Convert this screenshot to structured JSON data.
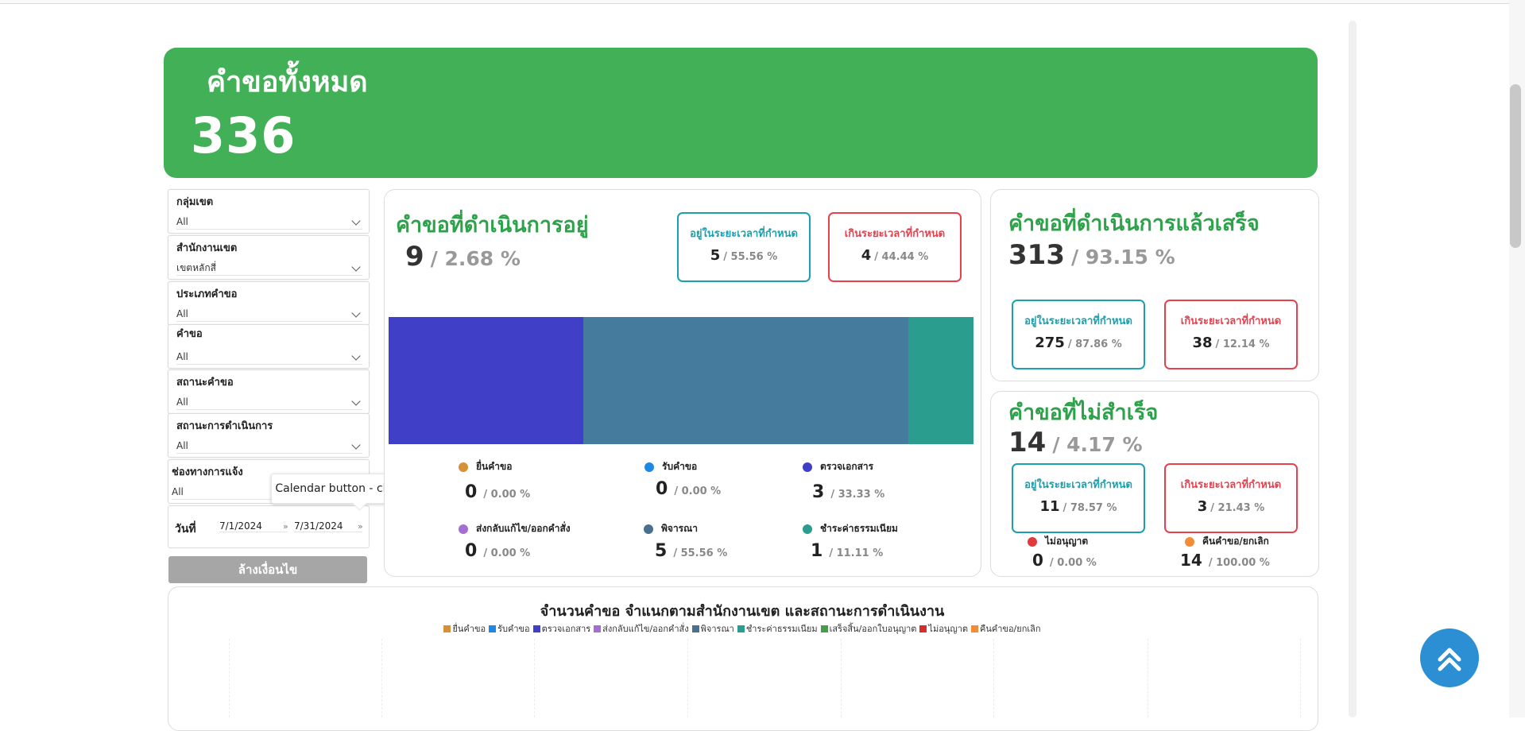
{
  "header": {
    "title": "คำขอทั้งหมด",
    "total": "336",
    "color": "#42b057"
  },
  "filters": [
    {
      "label": "กลุ่มเขต",
      "value": "All"
    },
    {
      "label": "สำนักงานเขต",
      "value": "เขตหลักสี่"
    },
    {
      "label": "ประเภทคำขอ",
      "value": "All"
    },
    {
      "label": "คำขอ",
      "value": "All"
    },
    {
      "label": "สถานะคำขอ",
      "value": "All"
    },
    {
      "label": "สถานะการดำเนินการ",
      "value": "All"
    },
    {
      "label": "ช่องทางการแจ้ง",
      "value": "All"
    }
  ],
  "date_filter": {
    "label": "วันที่",
    "start": "7/1/2024",
    "end": "7/31/2024"
  },
  "tooltip": "Calendar button - choose date",
  "clear_button": "ล้างเงื่อนไข",
  "in_progress": {
    "title": "คำขอที่ดำเนินการอยู่",
    "count": "9",
    "percent": "/ 2.68 %",
    "within": {
      "label": "อยู่ในระยะเวลาที่กำหนด",
      "count": "5",
      "percent": "/ 55.56 %"
    },
    "over": {
      "label": "เกินระยะเวลาที่กำหนด",
      "count": "4",
      "percent": "/ 44.44 %"
    },
    "bar_segments": [
      {
        "name": "ตรวจเอกสาร",
        "value": 3,
        "color": "#3f3fc8"
      },
      {
        "name": "พิจารณา",
        "value": 5,
        "color": "#457b9d"
      },
      {
        "name": "ชำระค่าธรรมเนียม",
        "value": 1,
        "color": "#2a9d8f"
      }
    ],
    "stats": [
      {
        "name": "ยื่นคำขอ",
        "count": "0",
        "percent": "/ 0.00 %",
        "color": "#d4913a"
      },
      {
        "name": "รับคำขอ",
        "count": "0",
        "percent": "/ 0.00 %",
        "color": "#1e88e5"
      },
      {
        "name": "ตรวจเอกสาร",
        "count": "3",
        "percent": "/ 33.33 %",
        "color": "#3f3fc8"
      },
      {
        "name": "ส่งกลับแก้ไข/ออกคำสั่ง",
        "count": "0",
        "percent": "/ 0.00 %",
        "color": "#a46fd0"
      },
      {
        "name": "พิจารณา",
        "count": "5",
        "percent": "/ 55.56 %",
        "color": "#4a6f8f"
      },
      {
        "name": "ชำระค่าธรรมเนียม",
        "count": "1",
        "percent": "/ 11.11 %",
        "color": "#2a9d8f"
      }
    ]
  },
  "completed": {
    "title": "คำขอที่ดำเนินการแล้วเสร็จ",
    "count": "313",
    "percent": "/ 93.15 %",
    "within": {
      "label": "อยู่ในระยะเวลาที่กำหนด",
      "count": "275",
      "percent": "/ 87.86 %"
    },
    "over": {
      "label": "เกินระยะเวลาที่กำหนด",
      "count": "38",
      "percent": "/ 12.14 %"
    }
  },
  "failed": {
    "title": "คำขอที่ไม่สำเร็จ",
    "count": "14",
    "percent": "/ 4.17 %",
    "within": {
      "label": "อยู่ในระยะเวลาที่กำหนด",
      "count": "11",
      "percent": "/ 78.57 %"
    },
    "over": {
      "label": "เกินระยะเวลาที่กำหนด",
      "count": "3",
      "percent": "/ 21.43 %"
    },
    "stats": [
      {
        "name": "ไม่อนุญาต",
        "count": "0",
        "percent": "/ 0.00 %",
        "color": "#e03a3a"
      },
      {
        "name": "คืนคำขอ/ยกเลิก",
        "count": "14",
        "percent": "/ 100.00 %",
        "color": "#f28c38"
      }
    ]
  },
  "chart": {
    "title": "จำนวนคำขอ  จำแนกตามสำนักงานเขต และสถานะการดำเนินงาน",
    "legend": [
      {
        "name": "ยื่นคำขอ",
        "color": "#d4913a"
      },
      {
        "name": "รับคำขอ",
        "color": "#1e88e5"
      },
      {
        "name": "ตรวจเอกสาร",
        "color": "#3f3fc8"
      },
      {
        "name": "ส่งกลับแก้ไข/ออกคำสั่ง",
        "color": "#a46fd0"
      },
      {
        "name": "พิจารณา",
        "color": "#4a6f8f"
      },
      {
        "name": "ชำระค่าธรรมเนียม",
        "color": "#2a9d8f"
      },
      {
        "name": "เสร็จสิ้น/ออกใบอนุญาต",
        "color": "#43a047"
      },
      {
        "name": "ไม่อนุญาต",
        "color": "#d32f2f"
      },
      {
        "name": "คืนคำขอ/ยกเลิก",
        "color": "#f28c38"
      }
    ]
  },
  "scroll_top_icon": "double-chevron-up-icon"
}
